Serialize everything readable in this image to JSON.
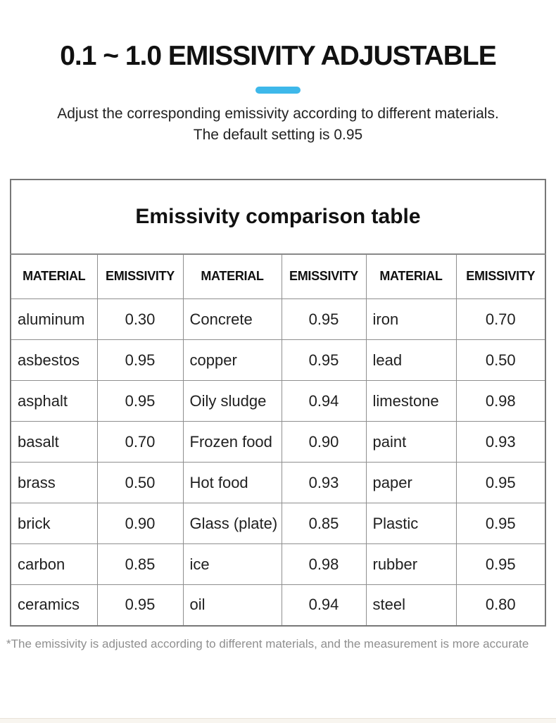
{
  "theme": {
    "accent_color": "#3EB8EA",
    "page_background": "#FFFFFF",
    "table_border_color": "#8E8E8E",
    "footnote_color": "#8F8F8F"
  },
  "hero": {
    "title": "0.1 ~ 1.0 EMISSIVITY ADJUSTABLE",
    "subtitle_line1": "Adjust the corresponding emissivity according to different materials.",
    "subtitle_line2": "The default setting is 0.95"
  },
  "table": {
    "title": "Emissivity comparison table",
    "headers": [
      "MATERIAL",
      "EMISSIVITY",
      "MATERIAL",
      "EMISSIVITY",
      "MATERIAL",
      "EMISSIVITY"
    ],
    "rows": [
      [
        "aluminum",
        "0.30",
        "Concrete",
        "0.95",
        "iron",
        "0.70"
      ],
      [
        "asbestos",
        "0.95",
        "copper",
        "0.95",
        "lead",
        "0.50"
      ],
      [
        "asphalt",
        "0.95",
        "Oily sludge",
        "0.94",
        "limestone",
        "0.98"
      ],
      [
        "basalt",
        "0.70",
        "Frozen food",
        "0.90",
        "paint",
        "0.93"
      ],
      [
        "brass",
        "0.50",
        "Hot food",
        "0.93",
        "paper",
        "0.95"
      ],
      [
        "brick",
        "0.90",
        "Glass (plate)",
        "0.85",
        "Plastic",
        "0.95"
      ],
      [
        "carbon",
        "0.85",
        "ice",
        "0.98",
        "rubber",
        "0.95"
      ],
      [
        "ceramics",
        "0.95",
        "oil",
        "0.94",
        "steel",
        "0.80"
      ]
    ]
  },
  "footnote": "*The emissivity is adjusted according to different materials, and the measurement is more accurate"
}
